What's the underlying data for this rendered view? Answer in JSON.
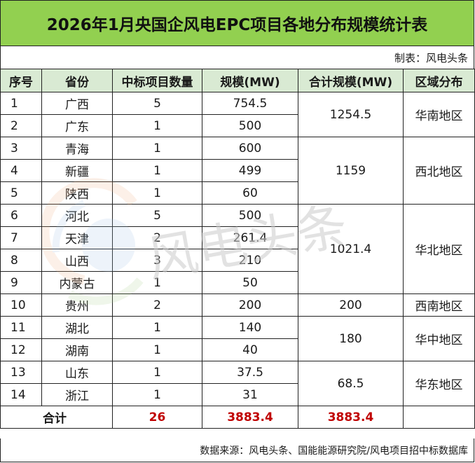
{
  "title": "2026年1月央国企风电EPC项目各地分布规模统计表",
  "maker": "制表：风电头条",
  "headers": [
    "序号",
    "省份",
    "中标项目数量",
    "规模(MW)",
    "合计规模(MW)",
    "区域分布"
  ],
  "rows": [
    {
      "no": "1",
      "province": "广西",
      "count": "5",
      "scale": "754.5"
    },
    {
      "no": "2",
      "province": "广东",
      "count": "1",
      "scale": "500"
    },
    {
      "no": "3",
      "province": "青海",
      "count": "1",
      "scale": "600"
    },
    {
      "no": "4",
      "province": "新疆",
      "count": "1",
      "scale": "499"
    },
    {
      "no": "5",
      "province": "陕西",
      "count": "1",
      "scale": "60"
    },
    {
      "no": "6",
      "province": "河北",
      "count": "5",
      "scale": "500"
    },
    {
      "no": "7",
      "province": "天津",
      "count": "2",
      "scale": "261.4"
    },
    {
      "no": "8",
      "province": "山西",
      "count": "3",
      "scale": "210"
    },
    {
      "no": "9",
      "province": "内蒙古",
      "count": "1",
      "scale": "50"
    },
    {
      "no": "10",
      "province": "贵州",
      "count": "2",
      "scale": "200"
    },
    {
      "no": "11",
      "province": "湖北",
      "count": "1",
      "scale": "140"
    },
    {
      "no": "12",
      "province": "湖南",
      "count": "1",
      "scale": "40"
    },
    {
      "no": "13",
      "province": "山东",
      "count": "1",
      "scale": "37.5"
    },
    {
      "no": "14",
      "province": "浙江",
      "count": "1",
      "scale": "31"
    }
  ],
  "regions": [
    {
      "total": "1254.5",
      "name": "华南地区"
    },
    {
      "total": "1159",
      "name": "西北地区"
    },
    {
      "total": "1021.4",
      "name": "华北地区"
    },
    {
      "total": "200",
      "name": "西南地区"
    },
    {
      "total": "180",
      "name": "华中地区"
    },
    {
      "total": "68.5",
      "name": "华东地区"
    }
  ],
  "total_row": {
    "label": "合计",
    "count": "26",
    "scale": "3883.4",
    "sum": "3883.4"
  },
  "source": "数据来源：风电头条、国能能源研究院/风电项目招中标数据库",
  "watermark": "风电头条",
  "colors": {
    "header_bg": "#d9ead3",
    "title_bg": "#92d050",
    "total_red": "#c00000"
  }
}
